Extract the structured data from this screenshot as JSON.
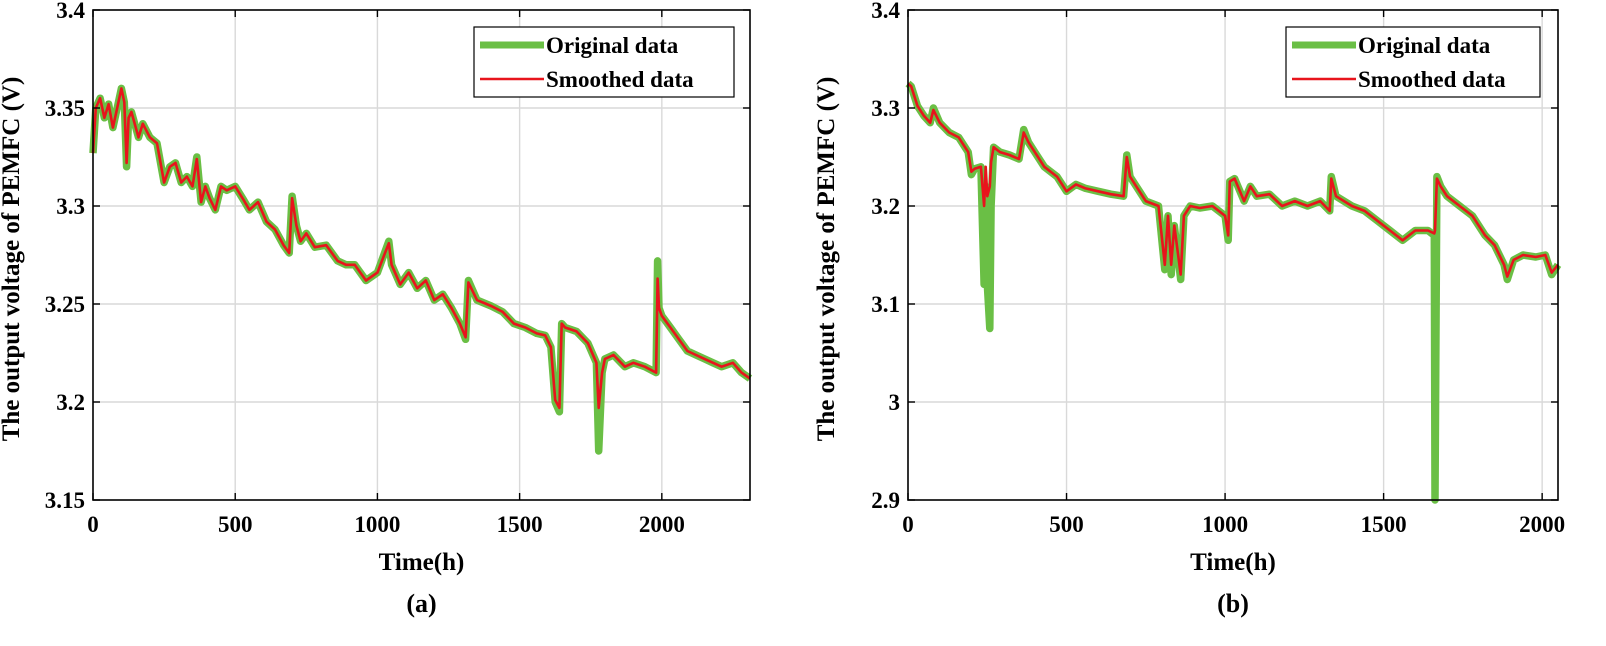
{
  "colors": {
    "original": "#6abf45",
    "smoothed": "#e8141c",
    "grid": "#d9d9d9",
    "axis": "#000000"
  },
  "chart_data": [
    {
      "type": "line",
      "panel_label": "(a)",
      "xlabel": "Time(h)",
      "ylabel": "The output voltage of PEMFC (V)",
      "xlim": [
        0,
        2310
      ],
      "ylim": [
        3.15,
        3.4
      ],
      "xticks": [
        0,
        500,
        1000,
        1500,
        2000
      ],
      "xtick_labels": [
        "0",
        "500",
        "1000",
        "1500",
        "2000"
      ],
      "yticks": [
        3.15,
        3.2,
        3.25,
        3.3,
        3.35,
        3.4
      ],
      "ytick_labels": [
        "3.15",
        "3.2",
        "3.25",
        "3.3",
        "3.35",
        "3.4"
      ],
      "grid": true,
      "legend_position": "top-right",
      "series": [
        {
          "name": "Original data",
          "x": [
            0,
            10,
            25,
            40,
            55,
            70,
            85,
            100,
            110,
            118,
            125,
            135,
            160,
            175,
            200,
            225,
            250,
            270,
            290,
            310,
            330,
            350,
            365,
            380,
            395,
            410,
            430,
            450,
            470,
            500,
            530,
            550,
            580,
            610,
            640,
            670,
            690,
            700,
            715,
            730,
            750,
            780,
            820,
            860,
            890,
            920,
            960,
            1000,
            1040,
            1050,
            1080,
            1110,
            1140,
            1170,
            1200,
            1230,
            1260,
            1290,
            1310,
            1320,
            1350,
            1400,
            1440,
            1480,
            1520,
            1560,
            1590,
            1610,
            1625,
            1640,
            1648,
            1660,
            1700,
            1740,
            1770,
            1778,
            1790,
            1800,
            1830,
            1870,
            1900,
            1940,
            1980,
            1985,
            1990,
            2000,
            2030,
            2060,
            2090,
            2120,
            2150,
            2180,
            2210,
            2250,
            2280,
            2310
          ],
          "y": [
            3.327,
            3.35,
            3.355,
            3.345,
            3.352,
            3.34,
            3.35,
            3.36,
            3.353,
            3.32,
            3.345,
            3.348,
            3.335,
            3.342,
            3.335,
            3.332,
            3.312,
            3.32,
            3.322,
            3.312,
            3.315,
            3.31,
            3.325,
            3.302,
            3.31,
            3.304,
            3.298,
            3.31,
            3.308,
            3.31,
            3.303,
            3.298,
            3.302,
            3.292,
            3.288,
            3.28,
            3.276,
            3.305,
            3.29,
            3.282,
            3.286,
            3.279,
            3.28,
            3.272,
            3.27,
            3.27,
            3.262,
            3.266,
            3.282,
            3.27,
            3.26,
            3.266,
            3.258,
            3.262,
            3.252,
            3.255,
            3.248,
            3.24,
            3.232,
            3.262,
            3.252,
            3.249,
            3.246,
            3.24,
            3.238,
            3.235,
            3.234,
            3.228,
            3.2,
            3.195,
            3.24,
            3.238,
            3.236,
            3.23,
            3.22,
            3.175,
            3.215,
            3.222,
            3.224,
            3.218,
            3.22,
            3.218,
            3.215,
            3.272,
            3.248,
            3.244,
            3.238,
            3.232,
            3.226,
            3.224,
            3.222,
            3.22,
            3.218,
            3.22,
            3.215,
            3.212
          ]
        },
        {
          "name": "Smoothed data",
          "x": [
            0,
            10,
            25,
            40,
            55,
            70,
            85,
            100,
            110,
            118,
            125,
            135,
            160,
            175,
            200,
            225,
            250,
            270,
            290,
            310,
            330,
            350,
            365,
            380,
            395,
            410,
            430,
            450,
            470,
            500,
            530,
            550,
            580,
            610,
            640,
            670,
            690,
            700,
            715,
            730,
            750,
            780,
            820,
            860,
            890,
            920,
            960,
            1000,
            1040,
            1050,
            1080,
            1110,
            1140,
            1170,
            1200,
            1230,
            1260,
            1290,
            1310,
            1320,
            1350,
            1400,
            1440,
            1480,
            1520,
            1560,
            1590,
            1610,
            1625,
            1640,
            1648,
            1660,
            1700,
            1740,
            1770,
            1778,
            1790,
            1800,
            1830,
            1870,
            1900,
            1940,
            1980,
            1985,
            1990,
            2000,
            2030,
            2060,
            2090,
            2120,
            2150,
            2180,
            2210,
            2250,
            2280,
            2310
          ],
          "y": [
            3.327,
            3.35,
            3.355,
            3.345,
            3.352,
            3.34,
            3.35,
            3.36,
            3.353,
            3.322,
            3.345,
            3.348,
            3.335,
            3.342,
            3.335,
            3.332,
            3.312,
            3.32,
            3.322,
            3.312,
            3.315,
            3.31,
            3.324,
            3.302,
            3.31,
            3.304,
            3.298,
            3.31,
            3.308,
            3.31,
            3.303,
            3.298,
            3.302,
            3.292,
            3.288,
            3.28,
            3.276,
            3.304,
            3.29,
            3.282,
            3.286,
            3.279,
            3.28,
            3.272,
            3.27,
            3.27,
            3.262,
            3.266,
            3.281,
            3.27,
            3.26,
            3.266,
            3.258,
            3.262,
            3.252,
            3.255,
            3.248,
            3.24,
            3.233,
            3.261,
            3.252,
            3.249,
            3.246,
            3.24,
            3.238,
            3.235,
            3.234,
            3.228,
            3.201,
            3.197,
            3.24,
            3.238,
            3.236,
            3.23,
            3.22,
            3.197,
            3.215,
            3.222,
            3.224,
            3.218,
            3.22,
            3.218,
            3.215,
            3.263,
            3.248,
            3.244,
            3.238,
            3.232,
            3.226,
            3.224,
            3.222,
            3.22,
            3.218,
            3.22,
            3.215,
            3.212
          ]
        }
      ]
    },
    {
      "type": "line",
      "panel_label": "(b)",
      "xlabel": "Time(h)",
      "ylabel": "The output voltage of PEMFC (V)",
      "xlim": [
        0,
        2050
      ],
      "ylim": [
        2.9,
        3.4
      ],
      "xticks": [
        0,
        500,
        1000,
        1500,
        2000
      ],
      "xtick_labels": [
        "0",
        "500",
        "1000",
        "1500",
        "2000"
      ],
      "yticks": [
        2.9,
        3.0,
        3.1,
        3.2,
        3.3,
        3.4
      ],
      "ytick_labels": [
        "2.9",
        "3",
        "3.1",
        "3.2",
        "3.3",
        "3.4"
      ],
      "grid": true,
      "legend_position": "top-right",
      "series": [
        {
          "name": "Original data",
          "x": [
            0,
            10,
            30,
            50,
            70,
            80,
            100,
            130,
            160,
            190,
            200,
            210,
            230,
            240,
            245,
            250,
            258,
            262,
            270,
            290,
            320,
            350,
            365,
            380,
            400,
            430,
            470,
            500,
            530,
            560,
            600,
            640,
            680,
            690,
            700,
            720,
            750,
            790,
            810,
            820,
            830,
            840,
            860,
            870,
            890,
            920,
            960,
            1000,
            1010,
            1015,
            1030,
            1060,
            1080,
            1100,
            1140,
            1180,
            1220,
            1260,
            1300,
            1330,
            1335,
            1350,
            1400,
            1440,
            1480,
            1520,
            1560,
            1600,
            1640,
            1660,
            1662,
            1668,
            1680,
            1700,
            1740,
            1780,
            1820,
            1850,
            1880,
            1890,
            1910,
            1940,
            1980,
            2010,
            2030,
            2050
          ],
          "y": [
            3.325,
            3.322,
            3.302,
            3.292,
            3.285,
            3.3,
            3.285,
            3.275,
            3.27,
            3.255,
            3.232,
            3.238,
            3.24,
            3.12,
            3.22,
            3.12,
            3.075,
            3.2,
            3.26,
            3.255,
            3.252,
            3.248,
            3.278,
            3.265,
            3.255,
            3.24,
            3.23,
            3.215,
            3.222,
            3.218,
            3.215,
            3.212,
            3.21,
            3.252,
            3.23,
            3.22,
            3.205,
            3.2,
            3.135,
            3.19,
            3.13,
            3.18,
            3.125,
            3.19,
            3.2,
            3.198,
            3.2,
            3.19,
            3.165,
            3.225,
            3.228,
            3.205,
            3.22,
            3.21,
            3.212,
            3.2,
            3.205,
            3.2,
            3.205,
            3.195,
            3.23,
            3.21,
            3.2,
            3.195,
            3.185,
            3.175,
            3.165,
            3.175,
            3.175,
            3.17,
            2.9,
            3.23,
            3.22,
            3.21,
            3.2,
            3.19,
            3.17,
            3.16,
            3.14,
            3.125,
            3.145,
            3.15,
            3.148,
            3.15,
            3.13,
            3.14
          ]
        },
        {
          "name": "Smoothed data",
          "x": [
            0,
            10,
            30,
            50,
            70,
            80,
            100,
            130,
            160,
            190,
            200,
            210,
            230,
            240,
            245,
            250,
            258,
            262,
            270,
            290,
            320,
            350,
            365,
            380,
            400,
            430,
            470,
            500,
            530,
            560,
            600,
            640,
            680,
            690,
            700,
            720,
            750,
            790,
            810,
            820,
            830,
            840,
            860,
            870,
            890,
            920,
            960,
            1000,
            1010,
            1015,
            1030,
            1060,
            1080,
            1100,
            1140,
            1180,
            1220,
            1260,
            1300,
            1330,
            1335,
            1350,
            1400,
            1440,
            1480,
            1520,
            1560,
            1600,
            1640,
            1660,
            1662,
            1668,
            1680,
            1700,
            1740,
            1780,
            1820,
            1850,
            1880,
            1890,
            1910,
            1940,
            1980,
            2010,
            2030,
            2050
          ],
          "y": [
            3.325,
            3.322,
            3.302,
            3.292,
            3.285,
            3.298,
            3.285,
            3.275,
            3.27,
            3.255,
            3.235,
            3.238,
            3.24,
            3.2,
            3.24,
            3.21,
            3.22,
            3.245,
            3.26,
            3.255,
            3.252,
            3.248,
            3.275,
            3.265,
            3.255,
            3.24,
            3.23,
            3.215,
            3.222,
            3.218,
            3.215,
            3.212,
            3.21,
            3.25,
            3.23,
            3.22,
            3.205,
            3.2,
            3.14,
            3.19,
            3.14,
            3.18,
            3.13,
            3.19,
            3.2,
            3.198,
            3.2,
            3.19,
            3.17,
            3.225,
            3.228,
            3.205,
            3.22,
            3.21,
            3.212,
            3.2,
            3.205,
            3.2,
            3.205,
            3.195,
            3.228,
            3.21,
            3.2,
            3.195,
            3.185,
            3.175,
            3.165,
            3.175,
            3.175,
            3.172,
            3.175,
            3.228,
            3.22,
            3.21,
            3.2,
            3.19,
            3.17,
            3.16,
            3.14,
            3.128,
            3.145,
            3.15,
            3.148,
            3.15,
            3.132,
            3.14
          ]
        }
      ]
    }
  ]
}
